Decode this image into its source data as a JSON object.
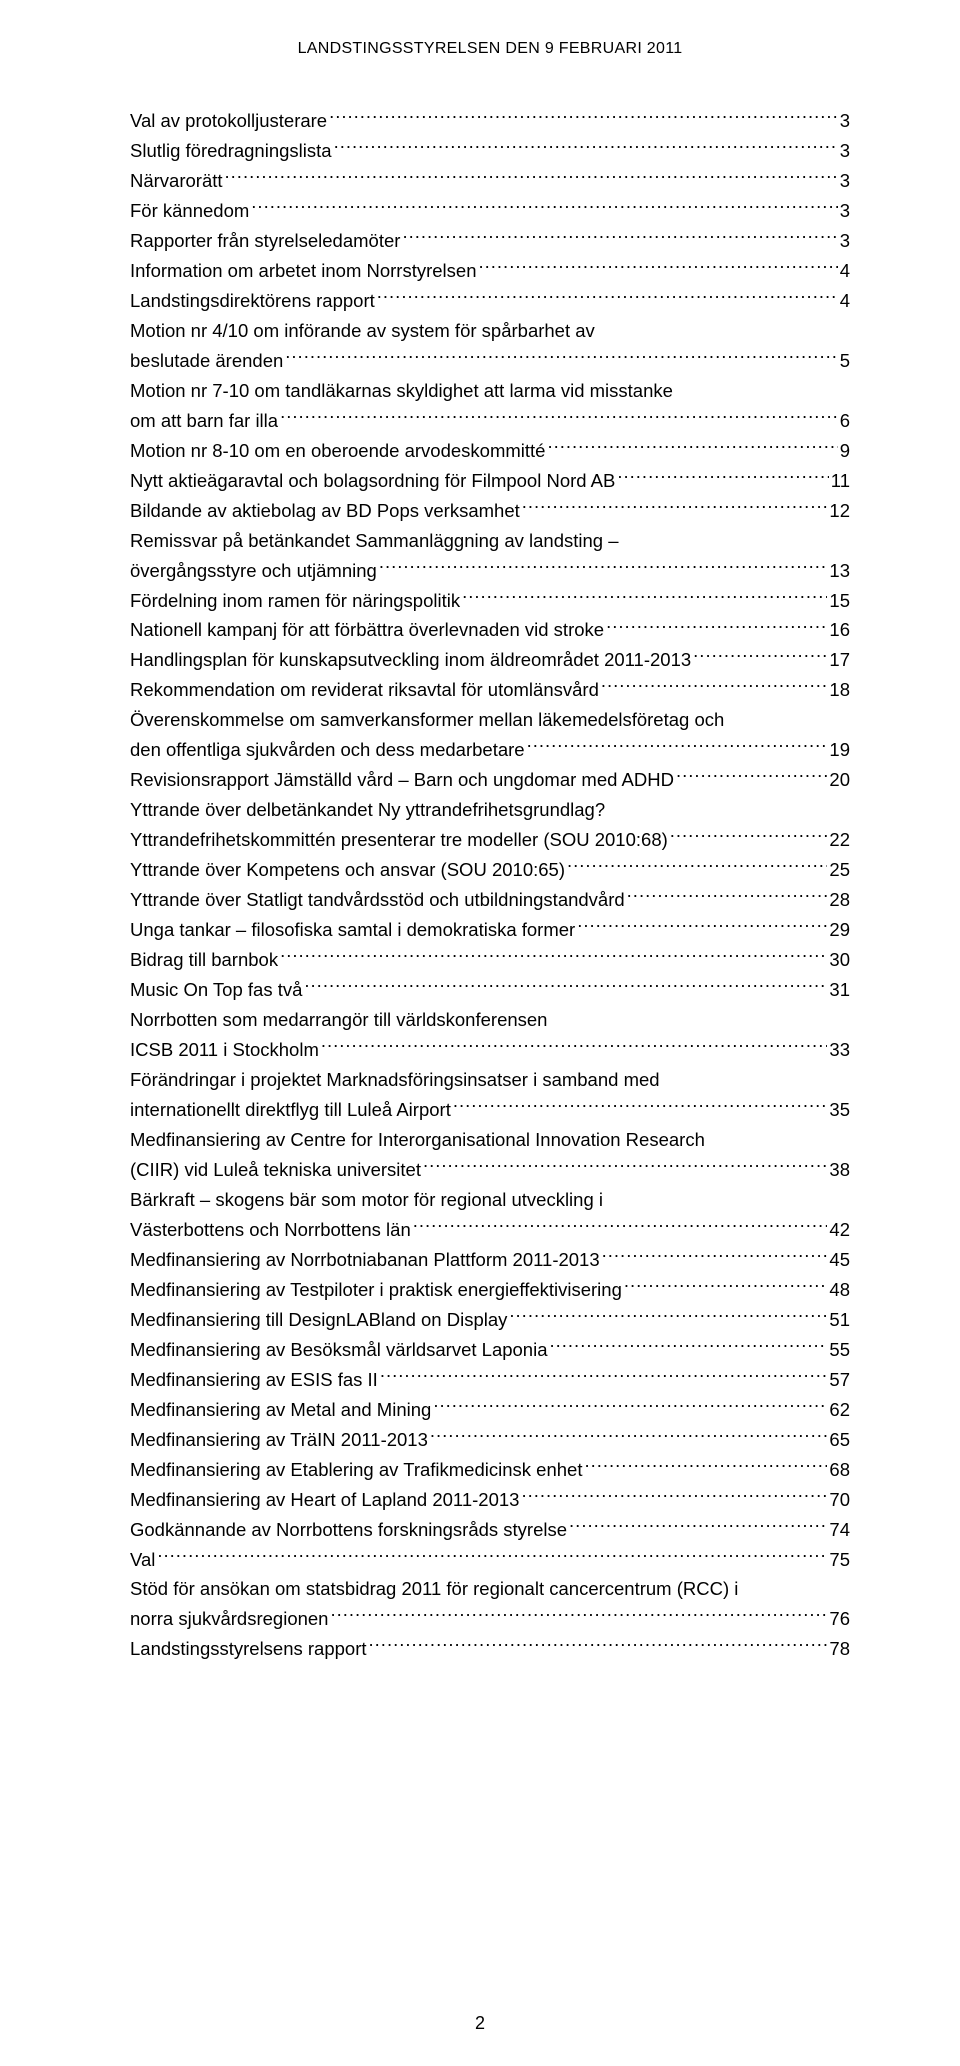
{
  "header": "LANDSTINGSSTYRELSEN DEN 9 FEBRUARI 2011",
  "pageNumber": "2",
  "toc": [
    {
      "title": "Val av protokolljusterare",
      "page": "3"
    },
    {
      "title": "Slutlig föredragningslista",
      "page": "3"
    },
    {
      "title": "Närvarorätt",
      "page": "3"
    },
    {
      "title": "För kännedom",
      "page": "3"
    },
    {
      "title": "Rapporter från styrelseledamöter",
      "page": "3"
    },
    {
      "title": "Information om arbetet  inom Norrstyrelsen",
      "page": "4"
    },
    {
      "title": "Landstingsdirektörens rapport",
      "page": "4"
    },
    {
      "title": "Motion nr 4/10 om införande av system för spårbarhet av",
      "cont": true
    },
    {
      "title": "beslutade ärenden",
      "page": "5"
    },
    {
      "title": "Motion nr 7-10 om tandläkarnas skyldighet att larma vid misstanke",
      "cont": true
    },
    {
      "title": "om att barn far illa",
      "page": "6"
    },
    {
      "title": "Motion nr 8-10 om en  oberoende arvodeskommitté",
      "page": "9"
    },
    {
      "title": "Nytt aktieägaravtal och  bolagsordning för Filmpool Nord AB",
      "page": "11"
    },
    {
      "title": "Bildande av aktiebolag av  BD Pops verksamhet",
      "page": "12"
    },
    {
      "title": "Remissvar på betänkandet Sammanläggning av landsting –",
      "cont": true
    },
    {
      "title": "övergångsstyre och utjämning",
      "page": "13"
    },
    {
      "title": "Fördelning inom  ramen för näringspolitik",
      "page": "15"
    },
    {
      "title": "Nationell kampanj för att  förbättra överlevnaden vid stroke",
      "page": "16"
    },
    {
      "title": "Handlingsplan för  kunskapsutveckling inom  äldreområdet 2011-2013",
      "page": "17"
    },
    {
      "title": "Rekommendation om reviderat riksavtal för utomlänsvård",
      "page": "18"
    },
    {
      "title": "Överenskommelse om samverkansformer mellan läkemedelsföretag och",
      "cont": true
    },
    {
      "title": "den offentliga sjukvården och dess medarbetare",
      "page": "19"
    },
    {
      "title": "Revisionsrapport  Jämställd vård – Barn och ungdomar med ADHD",
      "page": "20"
    },
    {
      "title": "Yttrande över delbetänkandet Ny yttrandefrihetsgrundlag?",
      "cont": true
    },
    {
      "title": "Yttrandefrihetskommittén presenterar tre modeller (SOU 2010:68)",
      "page": "22"
    },
    {
      "title": "Yttrande över Kompetens  och ansvar (SOU 2010:65)",
      "page": "25"
    },
    {
      "title": "Yttrande över  Statligt tandvårdsstöd och  utbildningstandvård",
      "page": "28"
    },
    {
      "title": "Unga tankar – filosofiska  samtal i demokratiska former",
      "page": "29"
    },
    {
      "title": "Bidrag till barnbok",
      "page": "30"
    },
    {
      "title": "Music On Top fas två",
      "page": "31"
    },
    {
      "title": "Norrbotten som medarrangör till världskonferensen",
      "cont": true
    },
    {
      "title": "ICSB 2011 i Stockholm",
      "page": "33"
    },
    {
      "title": "Förändringar i projektet Marknadsföringsinsatser i samband med",
      "cont": true
    },
    {
      "title": "internationellt direktflyg till Luleå Airport",
      "page": "35"
    },
    {
      "title": "Medfinansiering av Centre for Interorganisational Innovation Research",
      "cont": true
    },
    {
      "title": "(CIIR) vid Luleå tekniska universitet",
      "page": "38"
    },
    {
      "title": "Bärkraft – skogens bär som motor för regional utveckling i",
      "cont": true
    },
    {
      "title": "Västerbottens och Norrbottens län",
      "page": "42"
    },
    {
      "title": "Medfinansiering av  Norrbotniabanan  Plattform 2011-2013",
      "page": "45"
    },
    {
      "title": "Medfinansiering av Testpiloter i praktisk energieffektivisering",
      "page": "48"
    },
    {
      "title": "Medfinansiering till  DesignLABland on Display",
      "page": "51"
    },
    {
      "title": "Medfinansiering av  Besöksmål världsarvet Laponia",
      "page": "55"
    },
    {
      "title": "Medfinansiering av ESIS fas II",
      "page": "57"
    },
    {
      "title": "Medfinansiering av Metal and Mining",
      "page": "62"
    },
    {
      "title": "Medfinansiering av TräIN 2011-2013",
      "page": "65"
    },
    {
      "title": "Medfinansiering av  Etablering av Trafikmedicinsk enhet",
      "page": "68"
    },
    {
      "title": "Medfinansiering av  Heart of Lapland 2011-2013",
      "page": "70"
    },
    {
      "title": "Godkännande av Norrbottens forskningsråds styrelse",
      "page": "74"
    },
    {
      "title": "Val",
      "page": "75"
    },
    {
      "title": "Stöd för ansökan om statsbidrag  2011 för regionalt cancercentrum (RCC) i",
      "cont": true
    },
    {
      "title": "norra sjukvårdsregionen",
      "page": "76"
    },
    {
      "title": "Landstingsstyrelsens rapport",
      "page": "78"
    }
  ]
}
